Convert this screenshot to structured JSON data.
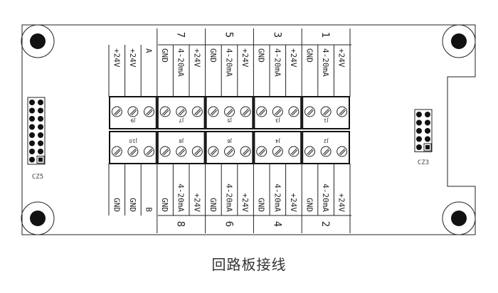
{
  "caption": "回路板接线",
  "connectors": {
    "left": "CZ5",
    "right": "CZ3"
  },
  "top_groups": [
    {
      "number": "",
      "labels": [
        "+24V",
        "+24V",
        "A"
      ],
      "connector": "J9"
    },
    {
      "number": "7",
      "labels": [
        "GND",
        "4-20mA",
        "+24V"
      ],
      "connector": "J7"
    },
    {
      "number": "5",
      "labels": [
        "GND",
        "4-20mA",
        "+24V"
      ],
      "connector": "J5"
    },
    {
      "number": "3",
      "labels": [
        "GND",
        "4-20mA",
        "+24V"
      ],
      "connector": "J3"
    },
    {
      "number": "1",
      "labels": [
        "GND",
        "4-20mA",
        "+24V"
      ],
      "connector": "J1"
    }
  ],
  "bottom_groups": [
    {
      "number": "",
      "labels": [
        "GND",
        "GND",
        "B"
      ],
      "connector": "J10"
    },
    {
      "number": "8",
      "labels": [
        "GND",
        "4-20mA",
        "+24V"
      ],
      "connector": "J8"
    },
    {
      "number": "6",
      "labels": [
        "GND",
        "4-20mA",
        "+24V"
      ],
      "connector": "J6"
    },
    {
      "number": "4",
      "labels": [
        "GND",
        "4-20mA",
        "+24V"
      ],
      "connector": "J4"
    },
    {
      "number": "2",
      "labels": [
        "GND",
        "4-20mA",
        "+24V"
      ],
      "connector": "J2"
    }
  ]
}
